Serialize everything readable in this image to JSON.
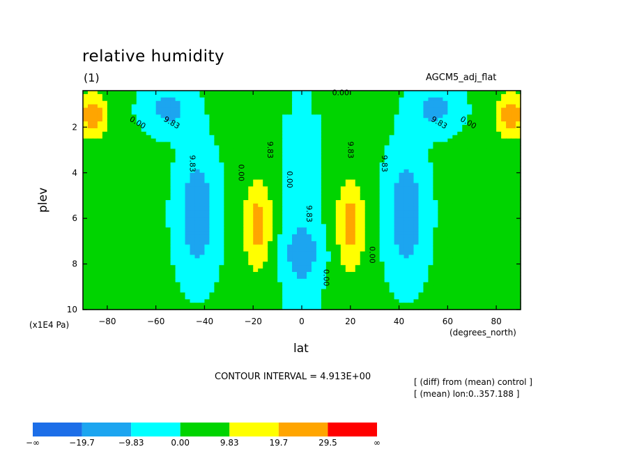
{
  "chart_data": {
    "type": "heatmap",
    "title": "relative humidity",
    "subtitle": "(1)",
    "dataset_label": "AGCM5_adj_flat",
    "xlabel": "lat",
    "x_unit": "(degrees_north)",
    "ylabel": "plev",
    "y_unit": "(x1E4 Pa)",
    "xlim": [
      -90,
      90
    ],
    "ylim": [
      10,
      0.4
    ],
    "x_ticks": [
      "−80",
      "−60",
      "−40",
      "−20",
      "0",
      "20",
      "40",
      "60",
      "80"
    ],
    "x_tick_values": [
      -80,
      -60,
      -40,
      -20,
      0,
      20,
      40,
      60,
      80
    ],
    "y_ticks": [
      "2",
      "4",
      "6",
      "8",
      "10"
    ],
    "y_tick_values": [
      2,
      4,
      6,
      8,
      10
    ],
    "contour_interval_text": "CONTOUR INTERVAL = 4.913E+00",
    "notes": [
      "[ (diff) from (mean) control ]",
      "[ (mean) lon:0..357.188 ]"
    ],
    "colorbar": {
      "levels": [
        "−∞",
        "−19.7",
        "−9.83",
        "0.00",
        "9.83",
        "19.7",
        "29.5",
        "∞"
      ],
      "colors": [
        "#1c6ee8",
        "#1ca5f0",
        "#00ffff",
        "#00d400",
        "#ffff00",
        "#ffa500",
        "#ff0000"
      ]
    },
    "contour_labels": [
      {
        "text": "0.00",
        "lat": 16,
        "p": 0.6
      },
      {
        "text": "0.00",
        "lat": -68,
        "p": 1.9
      },
      {
        "text": "9.83",
        "lat": -54,
        "p": 1.9
      },
      {
        "text": "9.83",
        "lat": 56,
        "p": 1.9
      },
      {
        "text": "0.00",
        "lat": 68,
        "p": 1.9
      },
      {
        "text": "9.83",
        "lat": -46,
        "p": 3.6
      },
      {
        "text": "0.00",
        "lat": -26,
        "p": 4.0
      },
      {
        "text": "9.83",
        "lat": -14,
        "p": 3.0
      },
      {
        "text": "0.00",
        "lat": -6,
        "p": 4.3
      },
      {
        "text": "9.83",
        "lat": 2,
        "p": 5.8
      },
      {
        "text": "9.83",
        "lat": 19,
        "p": 3.0
      },
      {
        "text": "9.83",
        "lat": 33,
        "p": 3.6
      },
      {
        "text": "0.00",
        "lat": 28,
        "p": 7.6
      },
      {
        "text": "0.00",
        "lat": 9,
        "p": 8.6
      }
    ],
    "features": [
      {
        "type": "negative",
        "lat": -55,
        "p": 1.2,
        "peak": -15
      },
      {
        "type": "negative",
        "lat": 55,
        "p": 1.2,
        "peak": -15
      },
      {
        "type": "negative",
        "lat": -43,
        "p": 5.8,
        "peak": -20
      },
      {
        "type": "negative",
        "lat": 43,
        "p": 5.8,
        "peak": -20
      },
      {
        "type": "negative",
        "lat": 0,
        "p": 7.5,
        "peak": -10
      },
      {
        "type": "positive",
        "lat": -18,
        "p": 6.3,
        "peak": 22
      },
      {
        "type": "positive",
        "lat": 20,
        "p": 6.3,
        "peak": 22
      },
      {
        "type": "positive",
        "lat": -86,
        "p": 1.5,
        "peak": 25
      },
      {
        "type": "positive",
        "lat": 86,
        "p": 1.5,
        "peak": 25
      }
    ]
  }
}
